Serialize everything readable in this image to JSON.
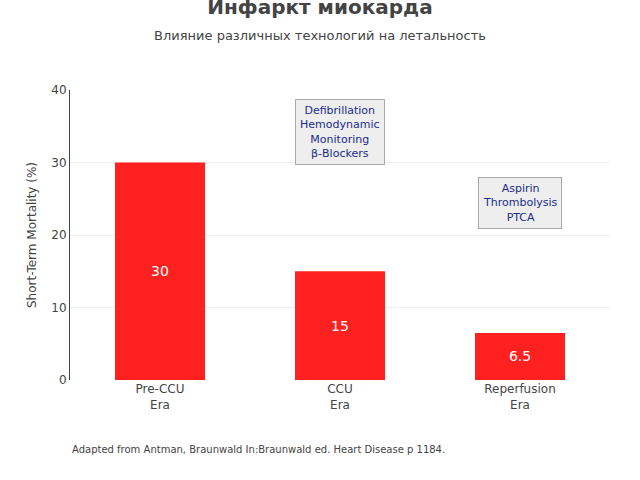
{
  "chart_data": {
    "type": "bar",
    "title": "Инфаркт миокарда",
    "subtitle": "Влияние различных технологий на летальность",
    "ylabel": "Short-Term Mortality (%)",
    "categories": [
      "Pre-CCU\nEra",
      "CCU\nEra",
      "Reperfusion\nEra"
    ],
    "values": [
      30,
      15,
      6.5
    ],
    "color": "#ff2020",
    "ylim": [
      0,
      40
    ],
    "yticks": [
      0,
      10,
      20,
      30,
      40
    ],
    "grid": true,
    "data_labels": true,
    "annotations": [
      "Defibrillation\nHemodynamic\nMonitoring\nβ-Blockers",
      "Aspirin\nThrombolysis\nPTCA"
    ],
    "footnote": "Adapted from Antman, Braunwald In:Braunwald ed. Heart Disease p 1184."
  }
}
